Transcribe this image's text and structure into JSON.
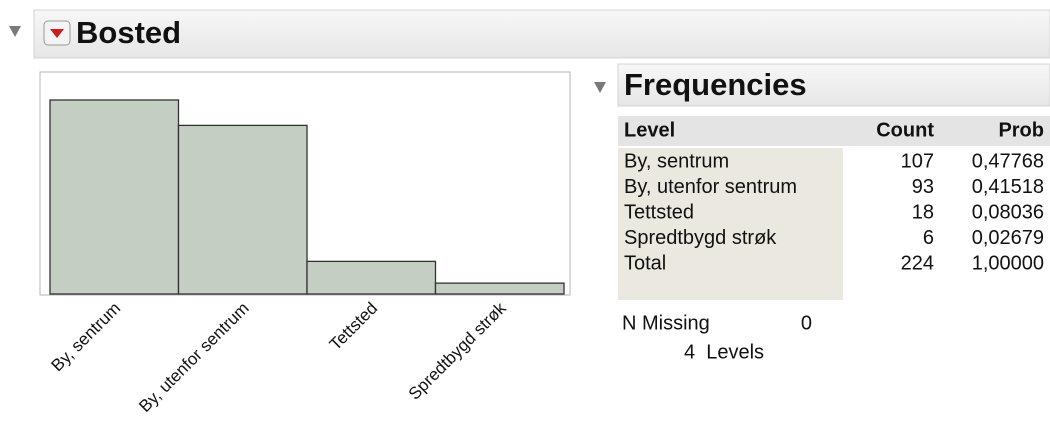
{
  "header": {
    "title": "Bosted"
  },
  "chart_data": {
    "type": "bar",
    "categories": [
      "By, sentrum",
      "By, utenfor sentrum",
      "Tettsted",
      "Spredtbygd strøk"
    ],
    "values": [
      107,
      93,
      18,
      6
    ],
    "color": "#c5cec3"
  },
  "frequencies": {
    "title": "Frequencies",
    "columns": [
      "Level",
      "Count",
      "Prob"
    ],
    "rows": [
      [
        "By, sentrum",
        107,
        "0,47768"
      ],
      [
        "By, utenfor sentrum",
        93,
        "0,41518"
      ],
      [
        "Tettsted",
        18,
        "0,08036"
      ],
      [
        "Spredtbygd strøk",
        6,
        "0,02679"
      ],
      [
        "Total",
        224,
        "1,00000"
      ]
    ],
    "n_missing": {
      "label": "N Missing",
      "value": 0
    },
    "levels": "4  Levels"
  }
}
